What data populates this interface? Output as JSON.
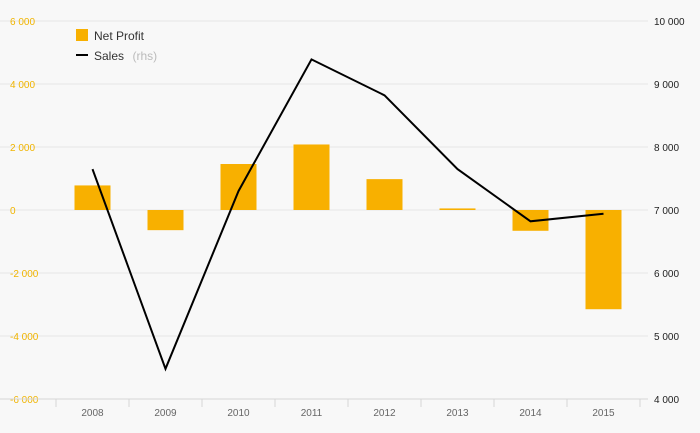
{
  "chart_data": {
    "type": "bar",
    "categories": [
      "2008",
      "2009",
      "2010",
      "2011",
      "2012",
      "2013",
      "2014",
      "2015"
    ],
    "series": [
      {
        "name": "Net Profit",
        "type": "bar",
        "axis": "left",
        "color": "#f8b000",
        "values": [
          780,
          -640,
          1460,
          2080,
          980,
          50,
          -660,
          -3150
        ]
      },
      {
        "name": "Sales",
        "name_suffix": "(rhs)",
        "type": "line",
        "axis": "right",
        "color": "#000000",
        "values": [
          7650,
          4480,
          7300,
          9390,
          8820,
          7650,
          6820,
          6940
        ]
      }
    ],
    "left_axis": {
      "ylim": [
        -6000,
        6000
      ],
      "ticks": [
        6000,
        4000,
        2000,
        0,
        -2000,
        -4000,
        -6000
      ],
      "tick_labels": [
        "6 000",
        "4 000",
        "2 000",
        "0",
        "-2 000",
        "-4 000",
        "-6 000"
      ],
      "color": "#f0b400"
    },
    "right_axis": {
      "ylim": [
        4000,
        10000
      ],
      "ticks": [
        10000,
        9000,
        8000,
        7000,
        6000,
        5000,
        4000
      ],
      "tick_labels": [
        "10 000",
        "9 000",
        "8 000",
        "7 000",
        "6 000",
        "5 000",
        "4 000"
      ],
      "color": "#222222"
    },
    "grid": true,
    "legend_position": "top-left"
  }
}
